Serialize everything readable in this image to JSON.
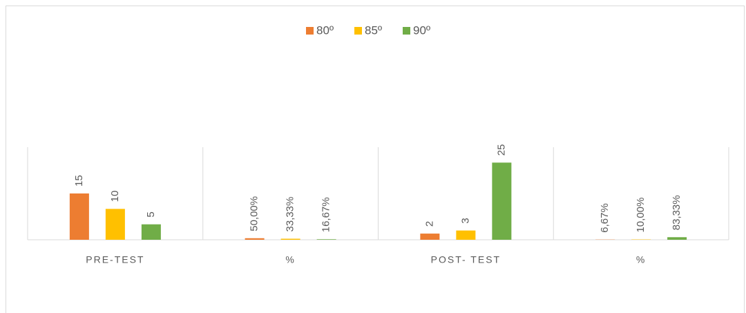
{
  "chart_data": {
    "type": "bar",
    "categories": [
      "PRE-TEST",
      "%",
      "POST- TEST",
      "%"
    ],
    "series": [
      {
        "name": "80º",
        "color": "#ed7d31",
        "values": [
          15,
          0.5,
          2,
          0.0667
        ],
        "value_labels": [
          "15",
          "50,00%",
          "2",
          "6,67%"
        ]
      },
      {
        "name": "85º",
        "color": "#ffc000",
        "values": [
          10,
          0.3333,
          3,
          0.1
        ],
        "value_labels": [
          "10",
          "33,33%",
          "3",
          "10,00%"
        ]
      },
      {
        "name": "90º",
        "color": "#70ad47",
        "values": [
          5,
          0.1667,
          25,
          0.8333
        ],
        "value_labels": [
          "5",
          "16,67%",
          "25",
          "83,33%"
        ]
      }
    ],
    "ylim": [
      0,
      30
    ],
    "legend": "top"
  }
}
